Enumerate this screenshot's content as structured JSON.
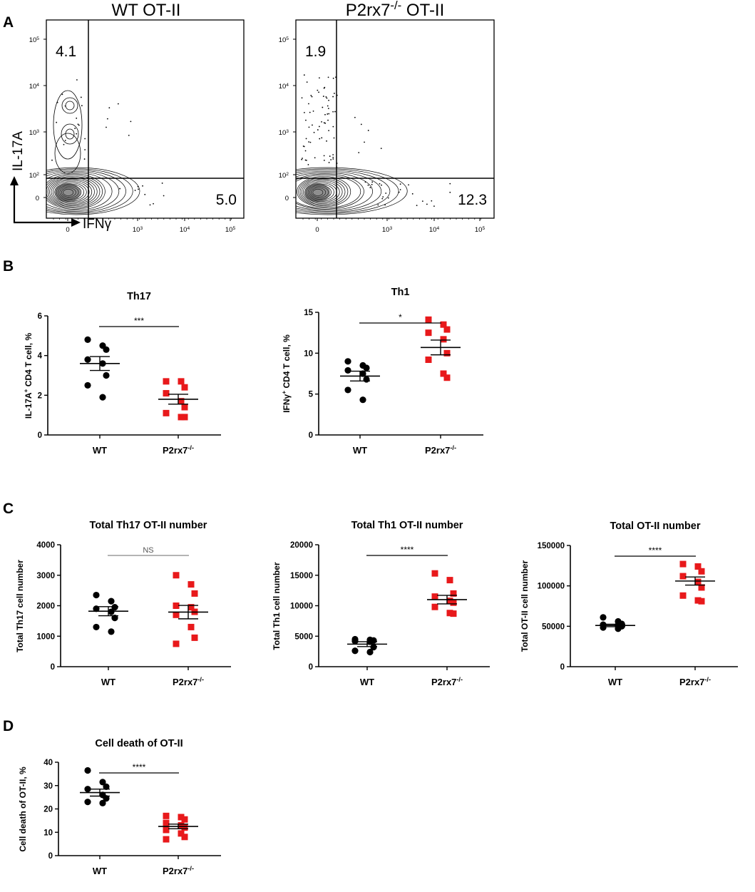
{
  "panel_labels": {
    "a": "A",
    "b": "B",
    "c": "C",
    "d": "D"
  },
  "colors": {
    "wt": "#000000",
    "ko": "#e8191b",
    "axis": "#000000",
    "ns_line": "#888888"
  },
  "flow": {
    "ylabel": "IL-17A",
    "xlabel": "IFNγ",
    "y_ticks": [
      {
        "b": "10",
        "e": "5"
      },
      {
        "b": "10",
        "e": "4"
      },
      {
        "b": "10",
        "e": "3"
      },
      {
        "b": "10",
        "e": "2"
      },
      {
        "b": "0",
        "e": ""
      }
    ],
    "x_ticks": [
      {
        "b": "0",
        "e": ""
      },
      {
        "b": "10",
        "e": "3"
      },
      {
        "b": "10",
        "e": "4"
      },
      {
        "b": "10",
        "e": "5"
      }
    ],
    "plots": [
      {
        "title": "WT OT-II",
        "title_sup": "",
        "title_rest": "",
        "upper_left": "4.1",
        "lower_right": "5.0"
      },
      {
        "title": "P2rx7",
        "title_sup": "-/-",
        "title_rest": " OT-II",
        "upper_left": "1.9",
        "lower_right": "12.3"
      }
    ]
  },
  "chart_data": [
    {
      "type": "scatter",
      "title": "Th17",
      "ylabel": "IL-17A",
      "ylabel_sup": "+",
      "ylabel_rest": " CD4 T cell, %",
      "ylim": [
        0,
        6
      ],
      "yticks": [
        "0",
        "2",
        "4",
        "6"
      ],
      "categories": [
        "WT",
        "P2rx7"
      ],
      "category_sup": [
        "",
        "-/-"
      ],
      "series": [
        {
          "name": "WT",
          "mean": 3.6,
          "sem": 0.35,
          "values": [
            4.8,
            4.5,
            4.3,
            3.8,
            3.6,
            3.0,
            2.5,
            1.9
          ]
        },
        {
          "name": "P2rx7-/-",
          "mean": 1.8,
          "sem": 0.25,
          "values": [
            2.7,
            2.7,
            2.4,
            2.1,
            1.7,
            1.4,
            1.1,
            0.9,
            0.9
          ]
        }
      ],
      "significance": "***"
    },
    {
      "type": "scatter",
      "title": "Th1",
      "ylabel": "IFNγ",
      "ylabel_sup": "+",
      "ylabel_rest": " CD4 T cell, %",
      "ylim": [
        0,
        15
      ],
      "yticks": [
        "0",
        "5",
        "10",
        "15"
      ],
      "categories": [
        "WT",
        "P2rx7"
      ],
      "category_sup": [
        "",
        "-/-"
      ],
      "series": [
        {
          "name": "WT",
          "mean": 7.2,
          "sem": 0.6,
          "values": [
            9.0,
            8.5,
            8.2,
            7.9,
            7.5,
            6.8,
            5.5,
            4.3
          ]
        },
        {
          "name": "P2rx7-/-",
          "mean": 10.7,
          "sem": 0.9,
          "values": [
            14.1,
            13.5,
            12.9,
            12.5,
            11.7,
            10.0,
            9.2,
            7.5,
            7.0
          ]
        }
      ],
      "significance": "*"
    },
    {
      "type": "scatter",
      "title": "Total Th17 OT-II number",
      "ylabel": "Total Th17 cell number",
      "ylabel_sup": "",
      "ylabel_rest": "",
      "ylim": [
        0,
        4000
      ],
      "yticks": [
        "0",
        "1000",
        "2000",
        "3000",
        "4000"
      ],
      "categories": [
        "WT",
        "P2rx7"
      ],
      "category_sup": [
        "",
        "-/-"
      ],
      "series": [
        {
          "name": "WT",
          "mean": 1820,
          "sem": 150,
          "values": [
            2350,
            2150,
            1950,
            1900,
            1800,
            1600,
            1300,
            1150
          ]
        },
        {
          "name": "P2rx7-/-",
          "mean": 1790,
          "sem": 220,
          "values": [
            3000,
            2700,
            2400,
            2000,
            1950,
            1800,
            1700,
            1300,
            950,
            750
          ]
        }
      ],
      "significance": "NS"
    },
    {
      "type": "scatter",
      "title": "Total Th1 OT-II number",
      "ylabel": "Total Th1 cell number",
      "ylabel_sup": "",
      "ylabel_rest": "",
      "ylim": [
        0,
        20000
      ],
      "yticks": [
        "0",
        "5000",
        "10000",
        "15000",
        "20000"
      ],
      "categories": [
        "WT",
        "P2rx7"
      ],
      "category_sup": [
        "",
        "-/-"
      ],
      "series": [
        {
          "name": "WT",
          "mean": 3700,
          "sem": 400,
          "values": [
            4500,
            4400,
            4300,
            4200,
            4100,
            3200,
            2600,
            2400
          ]
        },
        {
          "name": "P2rx7-/-",
          "mean": 11000,
          "sem": 700,
          "values": [
            15300,
            14200,
            12000,
            11500,
            10800,
            10500,
            9800,
            8800,
            8700
          ]
        }
      ],
      "significance": "****"
    },
    {
      "type": "scatter",
      "title": "Total OT-II number",
      "ylabel": "Total OT-II cell number",
      "ylabel_sup": "",
      "ylabel_rest": "",
      "ylim": [
        0,
        150000
      ],
      "yticks": [
        "0",
        "50000",
        "100000",
        "150000"
      ],
      "categories": [
        "WT",
        "P2rx7"
      ],
      "category_sup": [
        "",
        "-/-"
      ],
      "series": [
        {
          "name": "WT",
          "mean": 51000,
          "sem": 1500,
          "values": [
            61000,
            56000,
            53000,
            52000,
            51500,
            50000,
            48500,
            47000
          ]
        },
        {
          "name": "P2rx7-/-",
          "mean": 106000,
          "sem": 5000,
          "values": [
            127000,
            124000,
            118000,
            112000,
            105000,
            98000,
            88000,
            82000,
            81000
          ]
        }
      ],
      "significance": "****"
    },
    {
      "type": "scatter",
      "title": "Cell death of OT-II",
      "ylabel": "Cell death of OT-II, %",
      "ylabel_sup": "",
      "ylabel_rest": "",
      "ylim": [
        0,
        40
      ],
      "yticks": [
        "0",
        "10",
        "20",
        "30",
        "40"
      ],
      "categories": [
        "WT",
        "P2rx7"
      ],
      "category_sup": [
        "",
        "-/-"
      ],
      "series": [
        {
          "name": "WT",
          "mean": 27,
          "sem": 1.5,
          "values": [
            36.5,
            31.5,
            29.5,
            28.5,
            26.0,
            24.5,
            23.0,
            22.5
          ]
        },
        {
          "name": "P2rx7-/-",
          "mean": 12.5,
          "sem": 1.0,
          "values": [
            17.0,
            16.5,
            15.5,
            14.0,
            13.0,
            12.0,
            11.0,
            9.5,
            8.0,
            7.0
          ]
        }
      ],
      "significance": "****"
    }
  ]
}
